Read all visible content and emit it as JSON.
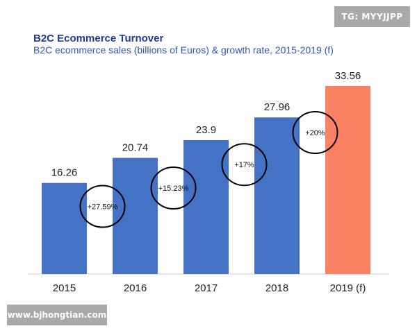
{
  "watermark_top": "TG: MYYJJPP",
  "watermark_bottom": "www.bjhongtian.com",
  "chart_data": {
    "type": "bar",
    "title": "B2C Ecommerce Turnover",
    "subtitle": "B2C ecommerce sales (billions of Euros) & growth rate, 2015-2019 (f)",
    "categories": [
      "2015",
      "2016",
      "2017",
      "2018",
      "2019 (f)"
    ],
    "values": [
      16.26,
      20.74,
      23.9,
      27.96,
      33.56
    ],
    "value_labels": [
      "16.26",
      "20.74",
      "23.9",
      "27.96",
      "33.56"
    ],
    "bar_colors": [
      "#4472c4",
      "#4472c4",
      "#4472c4",
      "#4472c4",
      "#fa8263"
    ],
    "growth_rates": [
      "+27.59%",
      "+15.23%",
      "+17%",
      "+20%"
    ],
    "ylim": [
      0,
      33.56
    ],
    "grid": false,
    "legend": "none",
    "axis_color": "#cccccc",
    "circle_color": "#000000"
  }
}
